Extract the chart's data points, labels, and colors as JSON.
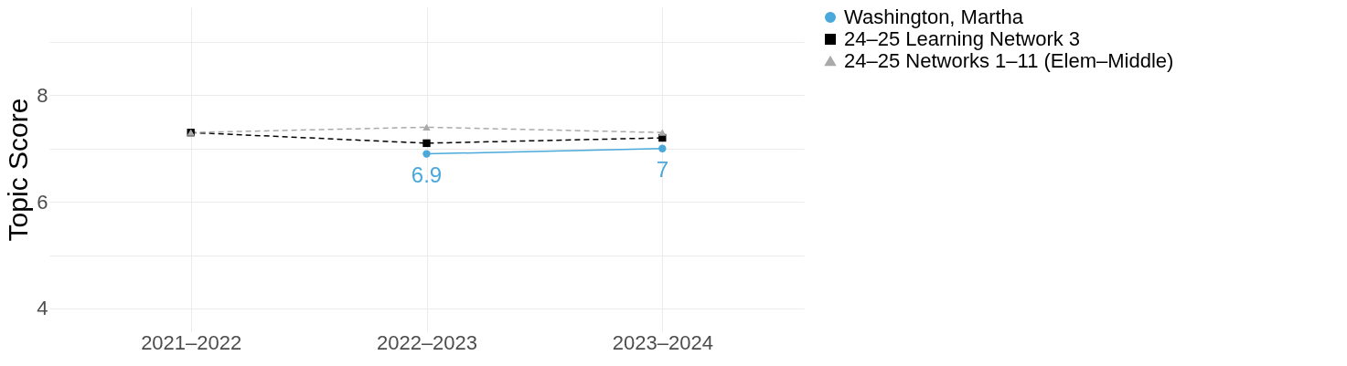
{
  "chart_data": {
    "type": "line",
    "ylabel": "Topic Score",
    "categories": [
      "2021–2022",
      "2022–2023",
      "2023–2024"
    ],
    "ylim": [
      3.57,
      9.65
    ],
    "yticks": [
      4,
      {
        "value": 5,
        "label": null
      },
      6,
      {
        "value": 7,
        "label": null
      },
      8,
      {
        "value": 9,
        "label": null
      }
    ],
    "grid": true,
    "legend": "right",
    "series": [
      {
        "name": "Washington, Martha",
        "color": "#4aa8db",
        "values": [
          null,
          6.9,
          7.0
        ],
        "marker": "circle",
        "line_style": "solid",
        "value_labels": [
          null,
          "6.9",
          "7"
        ]
      },
      {
        "name": "24–25 Learning Network 3",
        "color": "#000000",
        "values": [
          7.3,
          7.1,
          7.2
        ],
        "marker": "square",
        "line_style": "dashed"
      },
      {
        "name": "24–25 Networks 1–11 (Elem–Middle)",
        "color": "#aaaaaa",
        "values": [
          7.3,
          7.4,
          7.3
        ],
        "marker": "triangle",
        "line_style": "dashed"
      }
    ]
  }
}
